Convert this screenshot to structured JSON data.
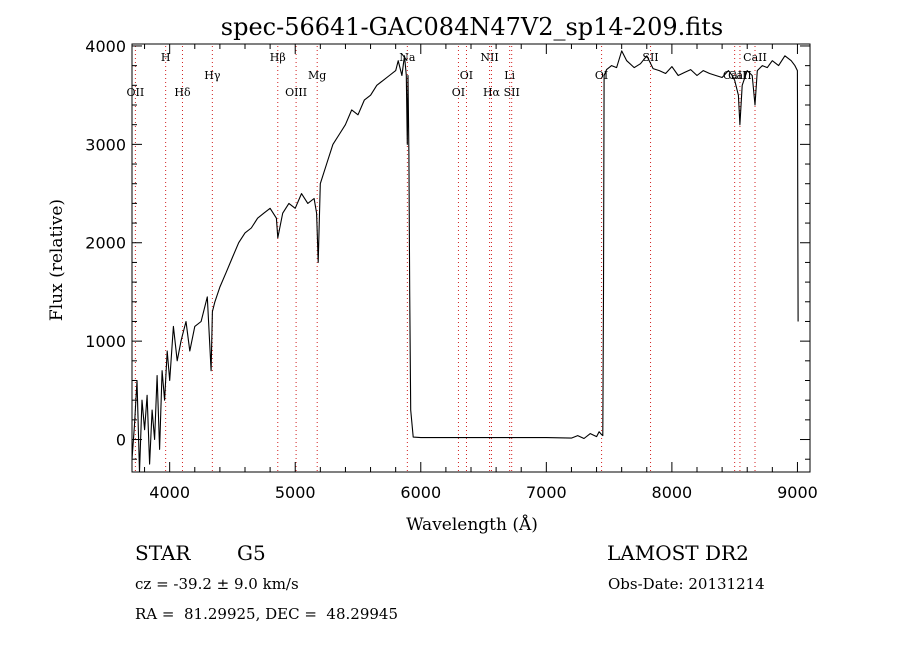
{
  "chart_data": {
    "type": "line",
    "title": "spec-56641-GAC084N47V2_sp14-209.fits",
    "xlabel": "Wavelength (Å)",
    "ylabel": "Flux (relative)",
    "xlim": [
      3700,
      9100
    ],
    "ylim": [
      -330,
      4020
    ],
    "xticks": [
      4000,
      5000,
      6000,
      7000,
      8000,
      9000
    ],
    "yticks": [
      0,
      1000,
      2000,
      3000,
      4000
    ],
    "grid": false,
    "series": [
      {
        "line_color": "#000000",
        "x": [
          3700,
          3720,
          3740,
          3760,
          3780,
          3800,
          3820,
          3840,
          3860,
          3880,
          3900,
          3920,
          3940,
          3960,
          3980,
          4000,
          4030,
          4060,
          4090,
          4100,
          4130,
          4160,
          4200,
          4250,
          4300,
          4330,
          4340,
          4360,
          4400,
          4450,
          4500,
          4550,
          4600,
          4650,
          4700,
          4750,
          4800,
          4850,
          4861,
          4900,
          4950,
          5000,
          5050,
          5100,
          5150,
          5170,
          5183,
          5200,
          5250,
          5300,
          5350,
          5400,
          5450,
          5500,
          5550,
          5600,
          5650,
          5700,
          5750,
          5800,
          5820,
          5850,
          5870,
          5885,
          5893,
          5898,
          5905,
          5912,
          5920,
          5940,
          6000,
          6500,
          7000,
          7200,
          7250,
          7300,
          7350,
          7400,
          7420,
          7440,
          7450,
          7455,
          7460,
          7480,
          7520,
          7560,
          7600,
          7640,
          7700,
          7750,
          7800,
          7850,
          7900,
          7950,
          8000,
          8050,
          8100,
          8150,
          8200,
          8250,
          8300,
          8350,
          8400,
          8450,
          8480,
          8500,
          8530,
          8542,
          8560,
          8600,
          8640,
          8662,
          8680,
          8720,
          8760,
          8800,
          8850,
          8900,
          8950,
          8980,
          9000,
          9005
        ],
        "y": [
          -200,
          150,
          600,
          -330,
          400,
          100,
          450,
          -250,
          300,
          0,
          650,
          -100,
          700,
          400,
          900,
          600,
          1150,
          800,
          1000,
          1050,
          1200,
          900,
          1150,
          1200,
          1450,
          700,
          1300,
          1400,
          1550,
          1700,
          1850,
          2000,
          2100,
          2150,
          2250,
          2300,
          2350,
          2250,
          2050,
          2300,
          2400,
          2350,
          2500,
          2400,
          2450,
          2300,
          1800,
          2600,
          2800,
          3000,
          3100,
          3200,
          3350,
          3300,
          3450,
          3500,
          3600,
          3650,
          3700,
          3750,
          3850,
          3700,
          3900,
          3700,
          3000,
          3700,
          2900,
          1500,
          300,
          25,
          20,
          20,
          20,
          15,
          40,
          10,
          60,
          30,
          80,
          50,
          40,
          1500,
          3700,
          3760,
          3800,
          3780,
          3950,
          3850,
          3780,
          3820,
          3900,
          3770,
          3750,
          3720,
          3790,
          3700,
          3730,
          3760,
          3700,
          3750,
          3720,
          3700,
          3680,
          3750,
          3700,
          3650,
          3500,
          3200,
          3600,
          3750,
          3700,
          3400,
          3750,
          3800,
          3780,
          3850,
          3800,
          3900,
          3850,
          3800,
          3750,
          1200
        ]
      }
    ],
    "line_markers": [
      {
        "label": "OII",
        "x": 3727,
        "row": 2
      },
      {
        "label": "H",
        "x": 3968,
        "row": 0
      },
      {
        "label": "Hδ",
        "x": 4102,
        "row": 2
      },
      {
        "label": "Hγ",
        "x": 4340,
        "row": 1
      },
      {
        "label": "Hβ",
        "x": 4861,
        "row": 0
      },
      {
        "label": "OIII",
        "x": 5007,
        "row": 2
      },
      {
        "label": "Mg",
        "x": 5175,
        "row": 1
      },
      {
        "label": "Na",
        "x": 5893,
        "row": 0
      },
      {
        "label": "OI",
        "x": 6300,
        "row": 2
      },
      {
        "label": "OI",
        "x": 6364,
        "row": 1
      },
      {
        "label": "NII",
        "x": 6548,
        "row": 0
      },
      {
        "label": "Hα",
        "x": 6563,
        "row": 2
      },
      {
        "label": "Li",
        "x": 6708,
        "row": 1
      },
      {
        "label": "SII",
        "x": 6724,
        "row": 2
      },
      {
        "label": "OI",
        "x": 7440,
        "row": 1
      },
      {
        "label": "SII",
        "x": 7830,
        "row": 0
      },
      {
        "label": "CaII",
        "x": 8500,
        "row": 1
      },
      {
        "label": "CaII",
        "x": 8542,
        "row": 1
      },
      {
        "label": "CaII",
        "x": 8662,
        "row": 0
      }
    ],
    "marker_color": "#d22020"
  },
  "info": {
    "object_class": "STAR",
    "subclass": "G5",
    "survey": "LAMOST DR2",
    "redshift": "cz = -39.2 ± 9.0 km/s",
    "obs_date": "Obs-Date: 20131214",
    "coords": "RA =  81.29925, DEC =  48.29945"
  }
}
